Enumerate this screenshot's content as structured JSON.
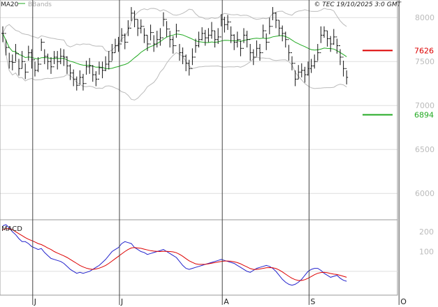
{
  "header": {
    "indicator_ma": "MA20",
    "indicator_bb": "BBands",
    "copyright": "© TEC 19/10/2025 3:0 GMT"
  },
  "colors": {
    "ma": "#22aa22",
    "bands": "#bbbbbb",
    "price": "#111111",
    "resistance": "#dd0000",
    "support": "#22aa22",
    "macd": "#2222cc",
    "signal": "#dd0000",
    "grid": "#dddddd"
  },
  "chart_data": [
    {
      "type": "ohlc",
      "yticks": [
        "8000",
        "7500",
        "7000",
        "6500",
        "6000"
      ],
      "ytick_values": [
        8000,
        7500,
        7000,
        6500,
        6000
      ],
      "ylim": [
        5700,
        8200
      ],
      "xticks": [
        "J",
        "J",
        "A",
        "S",
        "O"
      ],
      "xtick_index": [
        13,
        40,
        72,
        99,
        127
      ],
      "levels": [
        {
          "value": 7626,
          "label": "7626",
          "color": "#dd0000"
        },
        {
          "value": 6894,
          "label": "6894",
          "color": "#22aa22"
        }
      ],
      "series": {
        "close": [
          7820,
          7660,
          7500,
          7490,
          7590,
          7420,
          7500,
          7380,
          7600,
          7520,
          7400,
          7470,
          7720,
          7560,
          7500,
          7440,
          7550,
          7500,
          7560,
          7550,
          7450,
          7370,
          7300,
          7230,
          7320,
          7250,
          7440,
          7450,
          7350,
          7300,
          7430,
          7400,
          7470,
          7500,
          7600,
          7680,
          7700,
          7800,
          7720,
          7880,
          8050,
          7980,
          7880,
          7900,
          7800,
          7700,
          7830,
          7700,
          7750,
          7770,
          7980,
          7870,
          7750,
          7680,
          7850,
          7600,
          7560,
          7480,
          7420,
          7550,
          7680,
          7750,
          7820,
          7770,
          7800,
          7850,
          7750,
          7780,
          7980,
          7920,
          7950,
          7800,
          7720,
          7750,
          7650,
          7800,
          7750,
          7600,
          7550,
          7650,
          7600,
          7850,
          7720,
          7900,
          8050,
          7970,
          7880,
          7820,
          7750,
          7600,
          7480,
          7300,
          7380,
          7400,
          7350,
          7420,
          7450,
          7500,
          7600,
          7800,
          7850,
          7760,
          7700,
          7780,
          7680,
          7550,
          7420,
          7320
        ],
        "high": [
          7900,
          7750,
          7600,
          7580,
          7700,
          7530,
          7620,
          7480,
          7680,
          7640,
          7500,
          7550,
          7760,
          7640,
          7590,
          7550,
          7620,
          7620,
          7650,
          7640,
          7560,
          7470,
          7410,
          7330,
          7400,
          7360,
          7510,
          7540,
          7460,
          7390,
          7500,
          7500,
          7560,
          7620,
          7700,
          7760,
          7780,
          7880,
          7820,
          7970,
          8120,
          8080,
          7980,
          7980,
          7880,
          7800,
          7920,
          7800,
          7850,
          7880,
          8060,
          7960,
          7850,
          7790,
          7930,
          7700,
          7660,
          7580,
          7520,
          7650,
          7760,
          7840,
          7890,
          7860,
          7880,
          7950,
          7850,
          7880,
          8040,
          8010,
          8030,
          7900,
          7810,
          7840,
          7740,
          7880,
          7850,
          7700,
          7640,
          7740,
          7700,
          7920,
          7820,
          8000,
          8120,
          8060,
          7970,
          7910,
          7840,
          7690,
          7560,
          7400,
          7460,
          7480,
          7440,
          7500,
          7530,
          7580,
          7700,
          7900,
          7900,
          7850,
          7790,
          7870,
          7760,
          7640,
          7510,
          7400
        ],
        "low": [
          7720,
          7570,
          7420,
          7400,
          7500,
          7340,
          7420,
          7300,
          7510,
          7420,
          7330,
          7380,
          7620,
          7470,
          7410,
          7360,
          7470,
          7410,
          7470,
          7450,
          7360,
          7290,
          7220,
          7170,
          7240,
          7170,
          7350,
          7360,
          7270,
          7220,
          7350,
          7310,
          7390,
          7410,
          7510,
          7600,
          7610,
          7720,
          7640,
          7790,
          7960,
          7890,
          7790,
          7820,
          7710,
          7620,
          7740,
          7610,
          7660,
          7680,
          7900,
          7780,
          7660,
          7590,
          7770,
          7510,
          7470,
          7390,
          7340,
          7460,
          7600,
          7660,
          7740,
          7680,
          7720,
          7760,
          7660,
          7700,
          7900,
          7830,
          7860,
          7710,
          7630,
          7660,
          7560,
          7710,
          7660,
          7510,
          7460,
          7560,
          7510,
          7770,
          7630,
          7810,
          7970,
          7880,
          7790,
          7730,
          7660,
          7510,
          7400,
          7220,
          7300,
          7320,
          7260,
          7340,
          7370,
          7420,
          7510,
          7710,
          7770,
          7670,
          7610,
          7690,
          7590,
          7460,
          7330,
          7240
        ]
      }
    },
    {
      "type": "line",
      "title": "MACD",
      "yticks": [
        "200",
        "100"
      ],
      "ytick_values": [
        200,
        100
      ],
      "ylim": [
        -120,
        260
      ],
      "series": [
        {
          "values": [
            230,
            235,
            220,
            200,
            185,
            165,
            150,
            150,
            140,
            125,
            118,
            110,
            115,
            95,
            80,
            65,
            60,
            55,
            50,
            40,
            25,
            10,
            0,
            -10,
            -5,
            -10,
            -5,
            0,
            10,
            20,
            30,
            45,
            60,
            80,
            100,
            110,
            120,
            140,
            150,
            145,
            140,
            120,
            110,
            100,
            95,
            85,
            90,
            95,
            100,
            105,
            110,
            100,
            90,
            80,
            70,
            50,
            30,
            15,
            10,
            15,
            20,
            25,
            30,
            35,
            40,
            45,
            50,
            55,
            60,
            55,
            50,
            45,
            40,
            30,
            20,
            10,
            0,
            -5,
            5,
            15,
            20,
            25,
            30,
            25,
            15,
            0,
            -20,
            -40,
            -55,
            -65,
            -70,
            -65,
            -55,
            -40,
            -20,
            0,
            10,
            15,
            15,
            5,
            -10,
            -20,
            -30,
            -25,
            -20,
            -35,
            -45,
            -50
          ]
        },
        {
          "values": [
            210,
            215,
            215,
            210,
            200,
            190,
            180,
            170,
            162,
            155,
            148,
            140,
            135,
            127,
            118,
            110,
            100,
            92,
            85,
            78,
            70,
            60,
            50,
            40,
            30,
            22,
            16,
            12,
            10,
            12,
            16,
            22,
            30,
            40,
            52,
            64,
            76,
            88,
            100,
            110,
            118,
            120,
            118,
            116,
            112,
            108,
            104,
            102,
            101,
            100,
            101,
            101,
            100,
            98,
            94,
            86,
            76,
            64,
            53,
            45,
            38,
            35,
            35,
            36,
            38,
            41,
            44,
            47,
            50,
            52,
            52,
            51,
            48,
            44,
            38,
            30,
            22,
            14,
            10,
            10,
            12,
            15,
            18,
            19,
            18,
            14,
            7,
            -3,
            -14,
            -25,
            -35,
            -42,
            -46,
            -46,
            -42,
            -35,
            -26,
            -17,
            -10,
            -6,
            -5,
            -7,
            -11,
            -14,
            -16,
            -20,
            -25,
            -30
          ]
        }
      ],
      "xticks": [
        "J",
        "J",
        "A",
        "S",
        "O"
      ]
    }
  ]
}
